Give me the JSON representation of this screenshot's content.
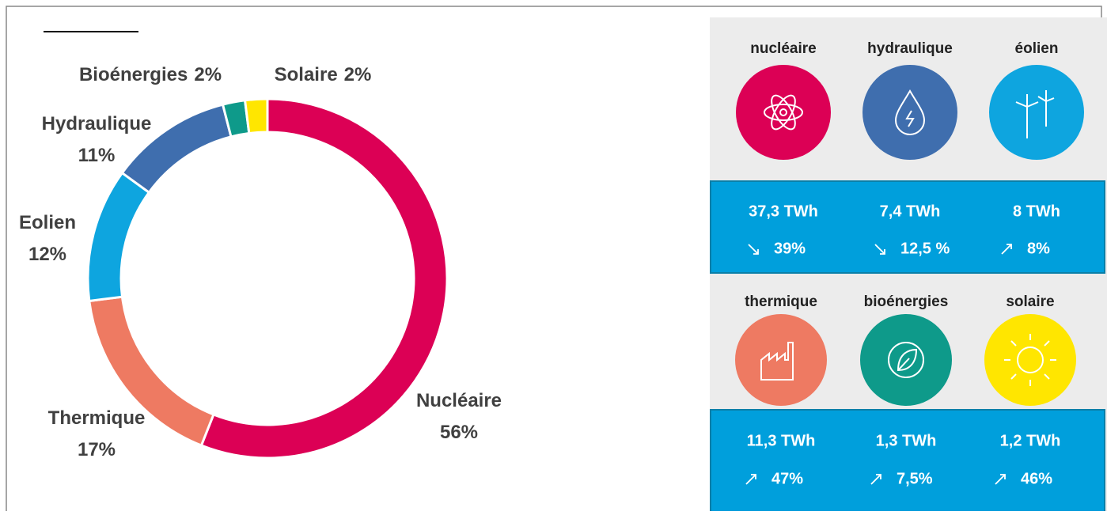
{
  "chart_data": {
    "type": "donut",
    "categories": [
      "Nucléaire",
      "Thermique",
      "Eolien",
      "Hydraulique",
      "Bioénergies",
      "Solaire"
    ],
    "values": [
      56,
      17,
      12,
      11,
      2,
      2
    ],
    "value_labels": [
      "56%",
      "17%",
      "12%",
      "11%",
      "2%",
      "2%"
    ],
    "colors": [
      "#dc0055",
      "#ee7a62",
      "#0ea5df",
      "#3f6eae",
      "#0e9a8a",
      "#ffe600"
    ]
  },
  "panel": {
    "tiles": [
      {
        "name": "nucléaire",
        "value": "37,3 TWh",
        "change": "39%"
      },
      {
        "name": "hydraulique",
        "value": "7,4 TWh",
        "change": "12,5 %"
      },
      {
        "name": "éolien",
        "value": "8 TWh",
        "change": "8%"
      },
      {
        "name": "thermique",
        "value": "11,3 TWh",
        "change": "47%"
      },
      {
        "name": "bioénergies",
        "value": "1,3 TWh",
        "change": "7,5%"
      },
      {
        "name": "solaire",
        "value": "1,2 TWh",
        "change": "46%"
      }
    ]
  }
}
